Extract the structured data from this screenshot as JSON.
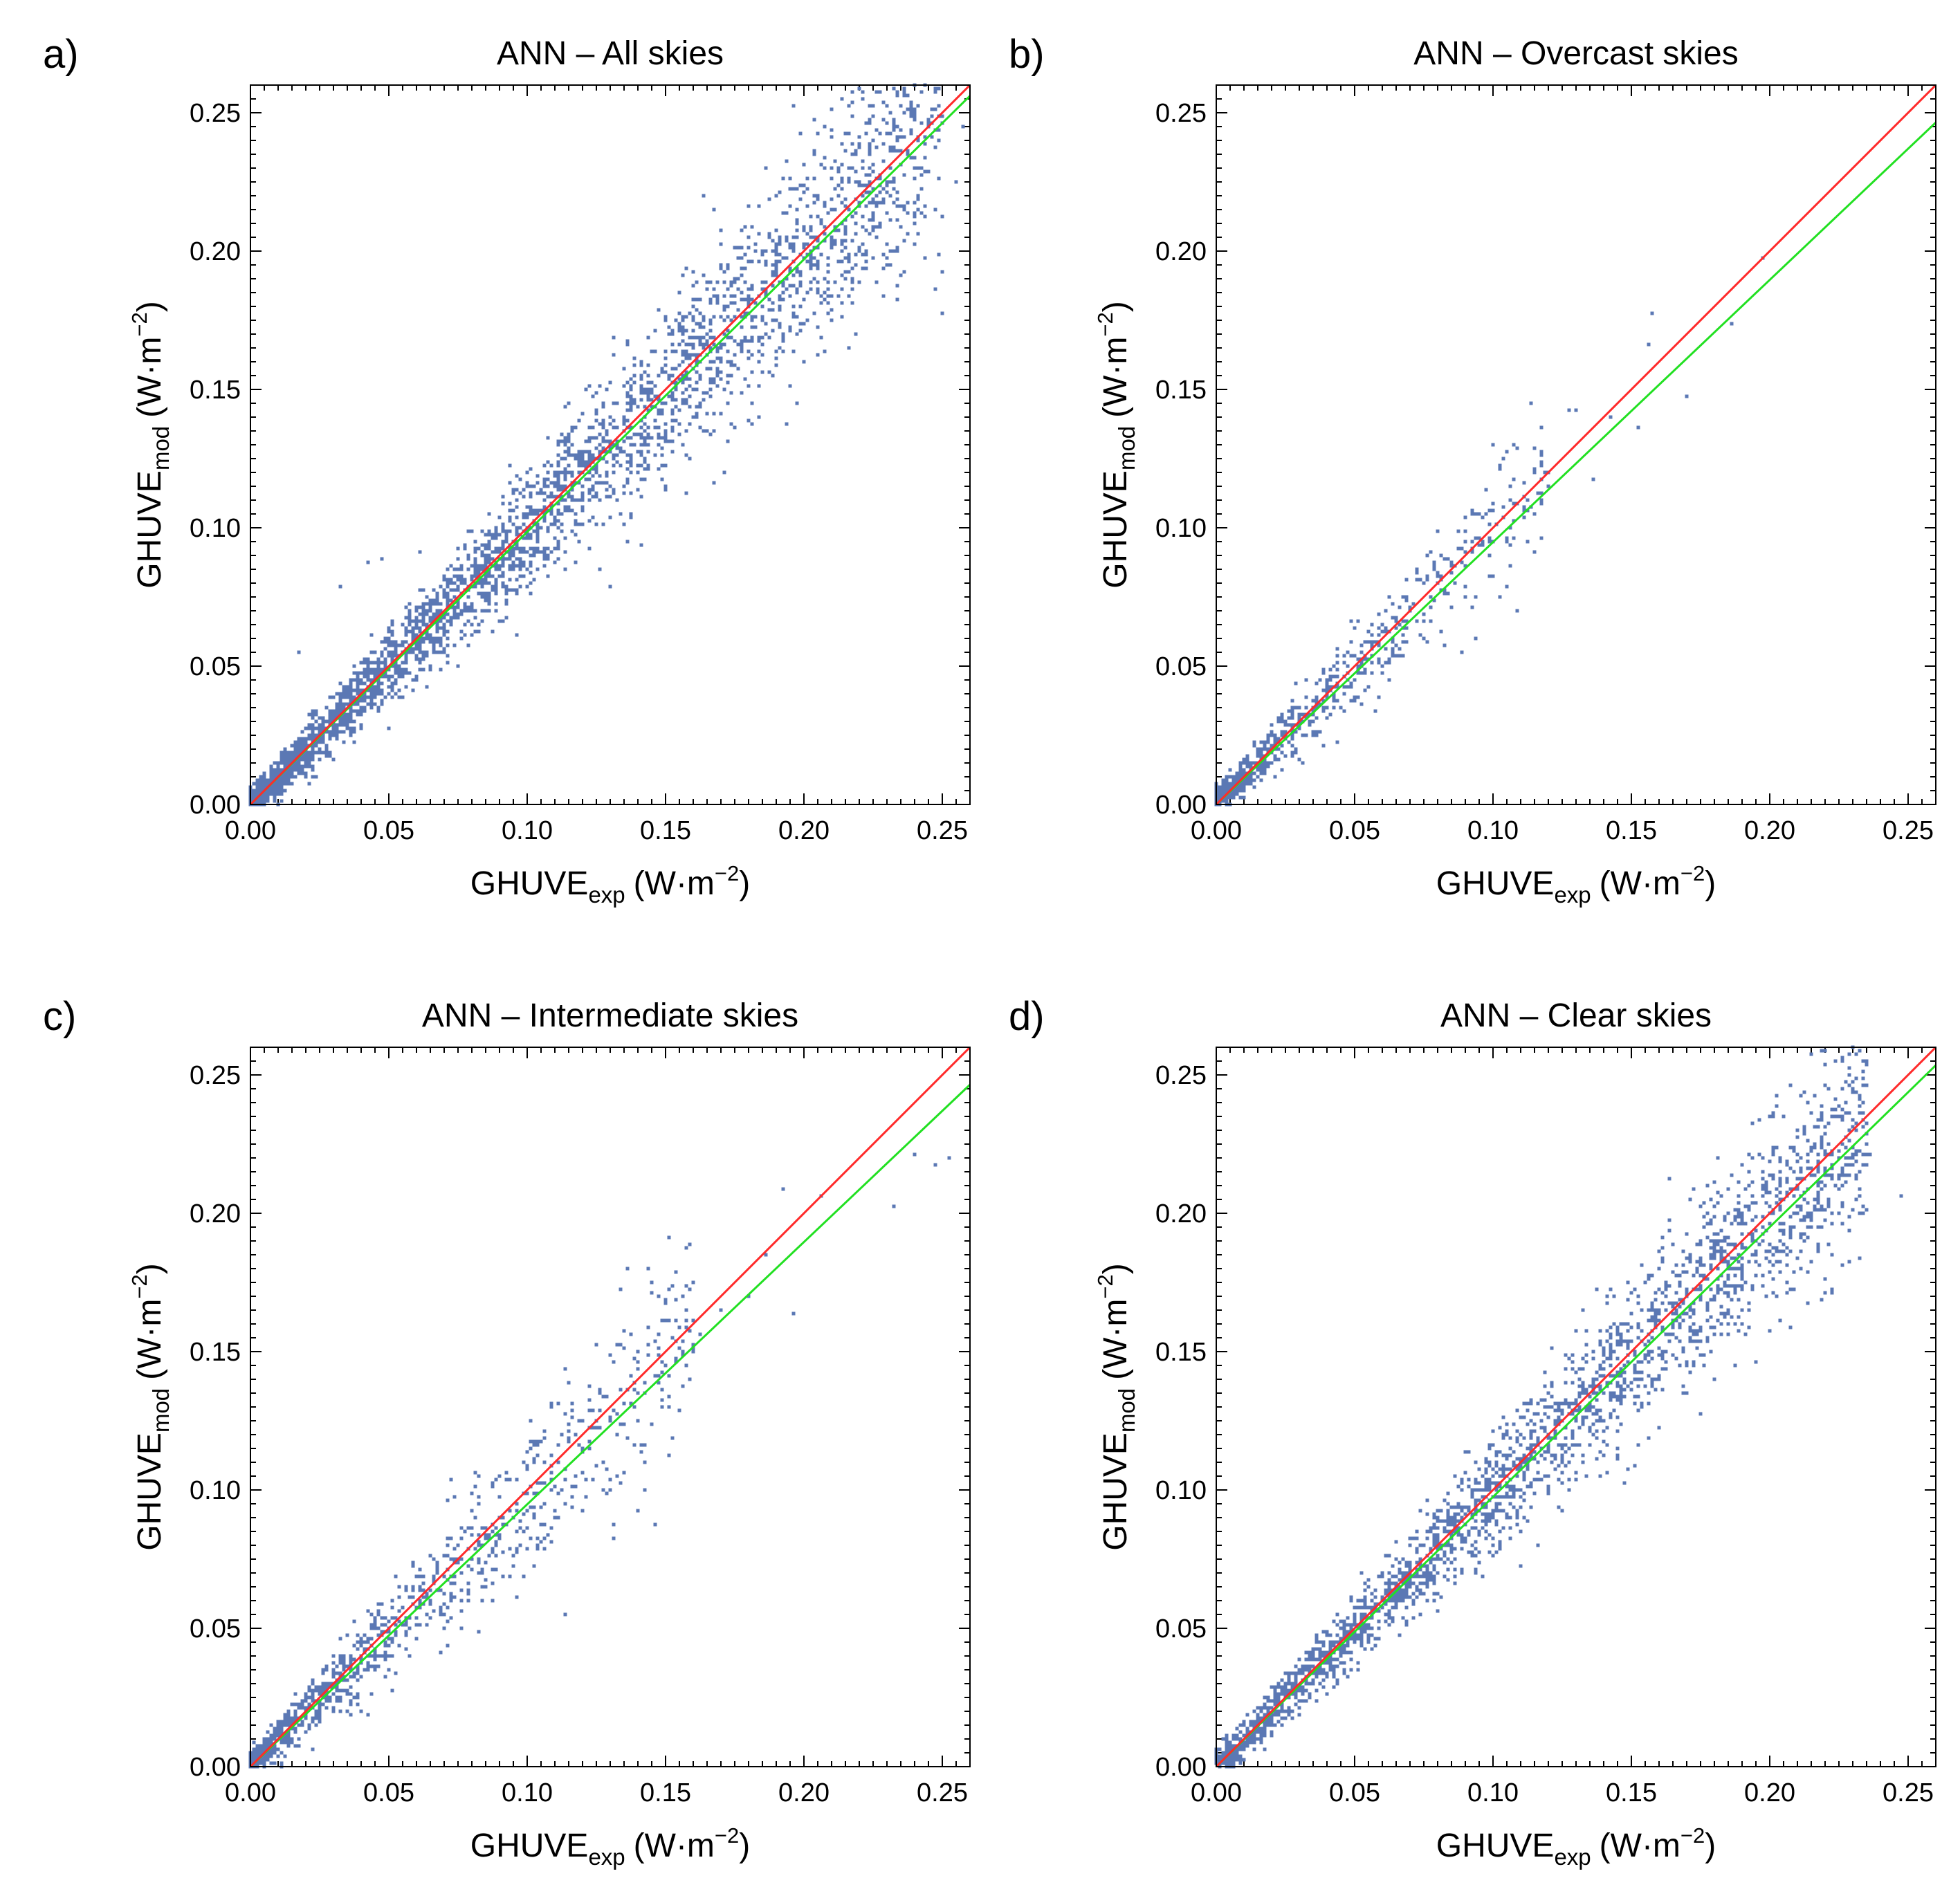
{
  "colors": {
    "points": "#5b78b4",
    "identity_line": "#ff2a2a",
    "fit_line": "#22e022",
    "frame": "#000000"
  },
  "chart_data": [
    {
      "panel": "a)",
      "type": "scatter",
      "title": "ANN – All skies",
      "xlabel": {
        "main": "GHUVE",
        "sub": "exp",
        "unit_pre": "(W·m",
        "sup": "−2",
        "unit_post": ")"
      },
      "ylabel": {
        "main": "GHUVE",
        "sub": "mod",
        "unit_pre": "(W·m",
        "sup": "−2",
        "unit_post": ")"
      },
      "xlim": [
        0,
        0.26
      ],
      "ylim": [
        0,
        0.26
      ],
      "xticks": [
        "0.00",
        "0.05",
        "0.10",
        "0.15",
        "0.20",
        "0.25"
      ],
      "yticks": [
        "0.00",
        "0.05",
        "0.10",
        "0.15",
        "0.20",
        "0.25"
      ],
      "lines": [
        {
          "name": "1:1 line",
          "color": "#ff2a2a",
          "slope": 1.0,
          "intercept": 0.0
        },
        {
          "name": "fit",
          "color": "#22e022",
          "slope": 0.985,
          "intercept": 0.0
        }
      ],
      "density": {
        "n": 3400,
        "max_x": 0.25,
        "spread": 0.085,
        "skew": 1.4,
        "seed": 11
      },
      "series": [
        {
          "name": "outliers",
          "x": [
            0.043,
            0.047,
            0.032,
            0.018,
            0.24,
            0.255,
            0.258,
            0.213,
            0.178,
            0.195,
            0.225,
            0.231
          ],
          "y": [
            0.088,
            0.089,
            0.079,
            0.055,
            0.21,
            0.225,
            0.245,
            0.229,
            0.208,
            0.223,
            0.198,
            0.225
          ]
        }
      ]
    },
    {
      "panel": "b)",
      "type": "scatter",
      "title": "ANN – Overcast skies",
      "xlabel": {
        "main": "GHUVE",
        "sub": "exp",
        "unit_pre": "(W·m",
        "sup": "−2",
        "unit_post": ")"
      },
      "ylabel": {
        "main": "GHUVE",
        "sub": "mod",
        "unit_pre": "(W·m",
        "sup": "−2",
        "unit_post": ")"
      },
      "xlim": [
        0,
        0.26
      ],
      "ylim": [
        0,
        0.26
      ],
      "xticks": [
        "0.00",
        "0.05",
        "0.10",
        "0.15",
        "0.20",
        "0.25"
      ],
      "yticks": [
        "0.00",
        "0.05",
        "0.10",
        "0.15",
        "0.20",
        "0.25"
      ],
      "lines": [
        {
          "name": "1:1 line",
          "color": "#ff2a2a",
          "slope": 1.0,
          "intercept": 0.0
        },
        {
          "name": "fit",
          "color": "#22e022",
          "slope": 0.948,
          "intercept": 0.0
        }
      ],
      "density": {
        "n": 900,
        "max_x": 0.12,
        "spread": 0.09,
        "skew": 2.6,
        "seed": 23
      },
      "series": [
        {
          "name": "outliers",
          "x": [
            0.158,
            0.156,
            0.17,
            0.186,
            0.198,
            0.136,
            0.13,
            0.128,
            0.142,
            0.152,
            0.118,
            0.112,
            0.105
          ],
          "y": [
            0.177,
            0.166,
            0.147,
            0.174,
            0.198,
            0.118,
            0.142,
            0.142,
            0.14,
            0.136,
            0.112,
            0.11,
            0.096
          ]
        }
      ]
    },
    {
      "panel": "c)",
      "type": "scatter",
      "title": "ANN – Intermediate skies",
      "xlabel": {
        "main": "GHUVE",
        "sub": "exp",
        "unit_pre": "(W·m",
        "sup": "−2",
        "unit_post": ")"
      },
      "ylabel": {
        "main": "GHUVE",
        "sub": "mod",
        "unit_pre": "(W·m",
        "sup": "−2",
        "unit_post": ")"
      },
      "xlim": [
        0,
        0.26
      ],
      "ylim": [
        0,
        0.26
      ],
      "xticks": [
        "0.00",
        "0.05",
        "0.10",
        "0.15",
        "0.20",
        "0.25"
      ],
      "yticks": [
        "0.00",
        "0.05",
        "0.10",
        "0.15",
        "0.20",
        "0.25"
      ],
      "lines": [
        {
          "name": "1:1 line",
          "color": "#ff2a2a",
          "slope": 1.0,
          "intercept": 0.0
        },
        {
          "name": "fit",
          "color": "#22e022",
          "slope": 0.948,
          "intercept": 0.0
        }
      ],
      "density": {
        "n": 1100,
        "max_x": 0.16,
        "spread": 0.11,
        "skew": 2.0,
        "seed": 37
      },
      "series": [
        {
          "name": "outliers",
          "x": [
            0.233,
            0.24,
            0.247,
            0.252,
            0.196,
            0.192,
            0.186,
            0.206,
            0.18,
            0.17,
            0.162
          ],
          "y": [
            0.202,
            0.221,
            0.217,
            0.22,
            0.164,
            0.209,
            0.185,
            0.206,
            0.17,
            0.165,
            0.156
          ]
        }
      ]
    },
    {
      "panel": "d)",
      "type": "scatter",
      "title": "ANN – Clear skies",
      "xlabel": {
        "main": "GHUVE",
        "sub": "exp",
        "unit_pre": "(W·m",
        "sup": "−2",
        "unit_post": ")"
      },
      "ylabel": {
        "main": "GHUVE",
        "sub": "mod",
        "unit_pre": "(W·m",
        "sup": "−2",
        "unit_post": ")"
      },
      "xlim": [
        0,
        0.26
      ],
      "ylim": [
        0,
        0.26
      ],
      "xticks": [
        "0.00",
        "0.05",
        "0.10",
        "0.15",
        "0.20",
        "0.25"
      ],
      "yticks": [
        "0.00",
        "0.05",
        "0.10",
        "0.15",
        "0.20",
        "0.25"
      ],
      "lines": [
        {
          "name": "1:1 line",
          "color": "#ff2a2a",
          "slope": 1.0,
          "intercept": 0.0
        },
        {
          "name": "fit",
          "color": "#22e022",
          "slope": 0.975,
          "intercept": 0.0
        }
      ],
      "density": {
        "n": 2600,
        "max_x": 0.235,
        "spread": 0.075,
        "skew": 1.1,
        "seed": 53
      },
      "series": [
        {
          "name": "outliers",
          "x": [
            0.248,
            0.232,
            0.236,
            0.228,
            0.215
          ],
          "y": [
            0.206,
            0.223,
            0.221,
            0.22,
            0.224
          ]
        }
      ]
    }
  ]
}
